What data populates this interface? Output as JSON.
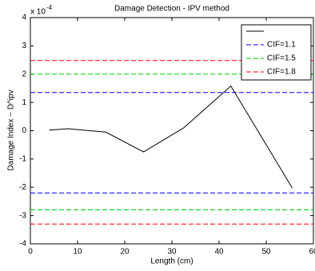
{
  "chart_data": {
    "type": "line",
    "title": "Damage Detection - IPV method",
    "x_label": "Length (cm)",
    "y_label": "Damage Index − D^ipv",
    "y_multiplier": "x 10",
    "y_multiplier_exponent": "-4",
    "x": [
      4,
      8,
      16,
      24,
      32.5,
      42.5,
      55.5
    ],
    "series": [
      {
        "color": "#000000",
        "values": [
          0.02,
          0.07,
          -0.05,
          -0.75,
          0.1,
          1.58,
          -2.02
        ]
      }
    ],
    "thresholds": [
      {
        "name": "CIF=1.1",
        "color": "#0000ff",
        "values": [
          1.35,
          -2.2
        ]
      },
      {
        "name": "CIF=1.5",
        "color": "#00cc00",
        "values": [
          2.0,
          -2.8
        ]
      },
      {
        "name": "CIF=1.8",
        "color": "#ff0000",
        "values": [
          2.48,
          -3.3
        ]
      }
    ],
    "xlim": [
      0,
      60
    ],
    "xticks": [
      0,
      10,
      20,
      30,
      40,
      50,
      60
    ],
    "ylim": [
      -4,
      4
    ],
    "yticks": [
      -4,
      -3,
      -2,
      -1,
      0,
      1,
      2,
      3,
      4
    ],
    "legend": "top-right"
  }
}
